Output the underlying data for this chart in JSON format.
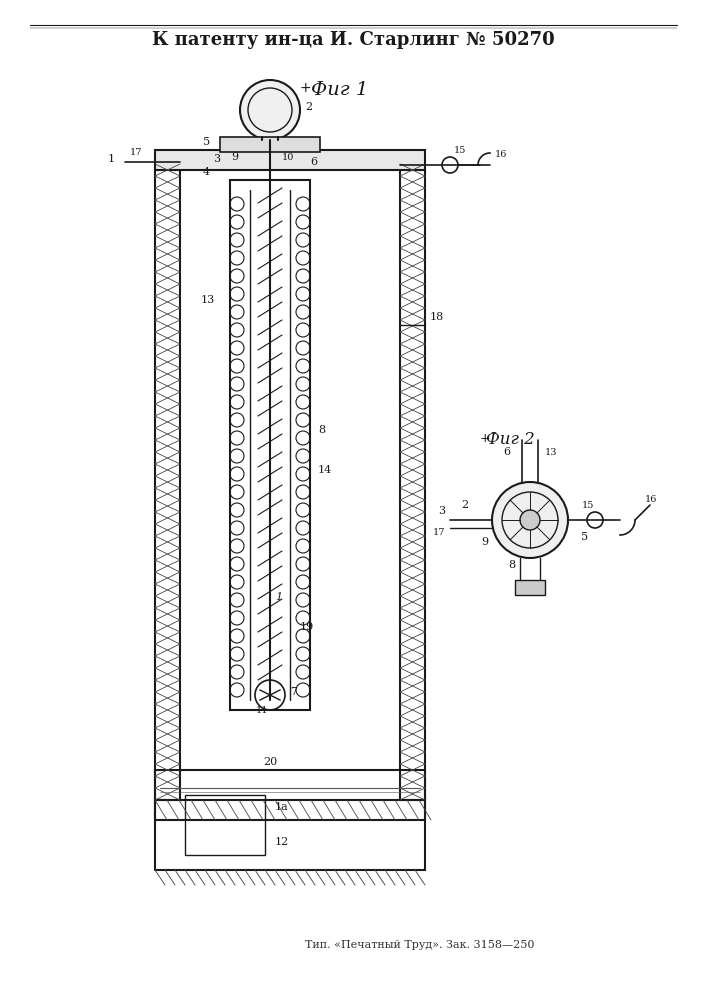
{
  "title": "К патенту ин-ца И. Старлинг № 50270",
  "bottom_text": "Тип. «Печатный Труд». Зак. 3158—250",
  "fig1_label": "Фиг 1",
  "fig2_label": "Фиг 2",
  "bg_color": "#ffffff",
  "line_color": "#1a1a1a",
  "hatch_color": "#555555",
  "fig_width": 7.07,
  "fig_height": 10.0
}
